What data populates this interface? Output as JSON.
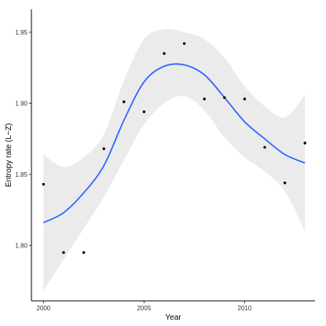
{
  "chart_data": {
    "type": "scatter",
    "title": "",
    "xlabel": "Year",
    "ylabel": "Entropy rate (L−Z)",
    "xlim": [
      1999.4,
      2013.5
    ],
    "ylim": [
      1.761,
      1.966
    ],
    "x_ticks": [
      2000,
      2005,
      2010
    ],
    "x_tick_labels": [
      "2000",
      "2005",
      "2010"
    ],
    "y_ticks": [
      1.8,
      1.85,
      1.9,
      1.95
    ],
    "y_tick_labels": [
      "1.80",
      "1.85",
      "1.90",
      "1.95"
    ],
    "grid": false,
    "legend": "none",
    "colors": {
      "points": "#000000",
      "smooth": "#3366FF",
      "band": "#EBEBEB"
    },
    "points": {
      "x": [
        2000,
        2001,
        2002,
        2003,
        2004,
        2005,
        2006,
        2007,
        2008,
        2009,
        2010,
        2011,
        2012,
        2013
      ],
      "y": [
        1.843,
        1.795,
        1.795,
        1.868,
        1.901,
        1.894,
        1.935,
        1.942,
        1.903,
        1.904,
        1.903,
        1.869,
        1.844,
        1.872
      ]
    },
    "smooth": {
      "x": [
        2000,
        2001,
        2002,
        2003,
        2004,
        2005,
        2006,
        2007,
        2008,
        2009,
        2010,
        2011,
        2012,
        2013
      ],
      "y": [
        1.816,
        1.823,
        1.837,
        1.856,
        1.888,
        1.915,
        1.926,
        1.927,
        1.92,
        1.904,
        1.887,
        1.875,
        1.864,
        1.858
      ],
      "lower": [
        1.768,
        1.79,
        1.812,
        1.834,
        1.86,
        1.885,
        1.9,
        1.905,
        1.895,
        1.876,
        1.862,
        1.852,
        1.838,
        1.81
      ],
      "upper": [
        1.864,
        1.855,
        1.862,
        1.878,
        1.916,
        1.945,
        1.952,
        1.95,
        1.945,
        1.932,
        1.912,
        1.898,
        1.89,
        1.906
      ]
    }
  }
}
